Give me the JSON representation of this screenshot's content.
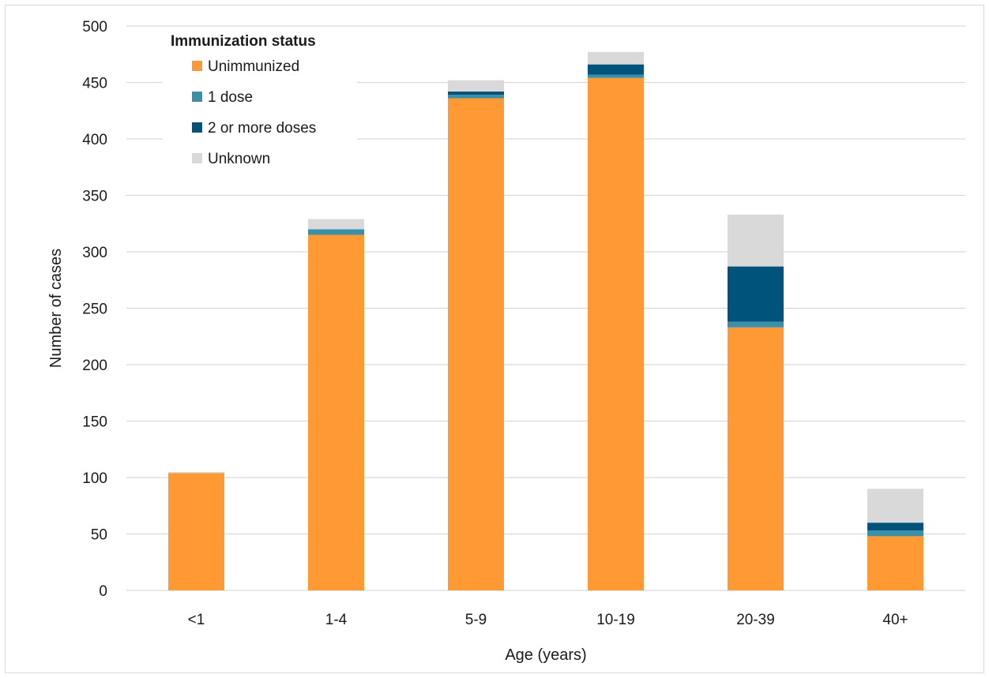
{
  "chart_data": {
    "type": "bar",
    "stacked": true,
    "title": "",
    "xlabel": "Age (years)",
    "ylabel": "Number of cases",
    "ylim": [
      0,
      500
    ],
    "yticks": [
      0,
      50,
      100,
      150,
      200,
      250,
      300,
      350,
      400,
      450,
      500
    ],
    "grid": true,
    "legend_title": "Immunization status",
    "legend_position": "top-left",
    "categories": [
      "<1",
      "1-4",
      "5-9",
      "10-19",
      "20-39",
      "40+"
    ],
    "series": [
      {
        "name": "Unimmunized",
        "color": "#ff9933",
        "values": [
          104,
          315,
          436,
          454,
          233,
          48
        ]
      },
      {
        "name": "1 dose",
        "color": "#3d8fa8",
        "values": [
          0,
          5,
          3,
          3,
          5,
          5
        ]
      },
      {
        "name": "2 or more doses",
        "color": "#00547c",
        "values": [
          0,
          0,
          3,
          9,
          49,
          7
        ]
      },
      {
        "name": "Unknown",
        "color": "#d9d9d9",
        "values": [
          1,
          9,
          10,
          11,
          46,
          30
        ]
      }
    ]
  }
}
